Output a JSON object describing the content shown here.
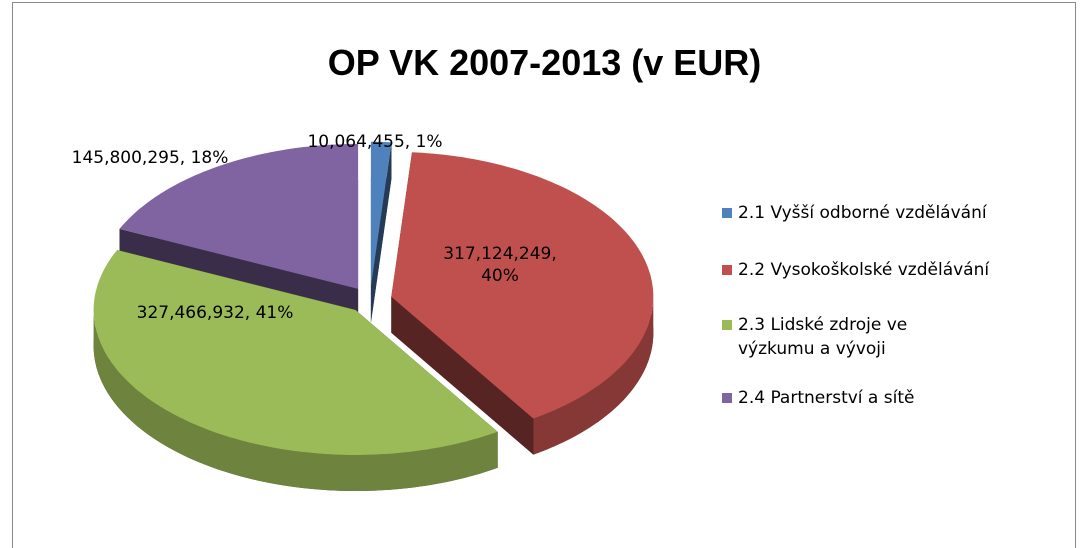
{
  "chart_data": {
    "type": "pie",
    "title": "OP VK 2007-2013 (v EUR)",
    "categories": [
      "2.1 Vyšší odborné vzdělávání",
      "2.2 Vysokoškolské vzdělávání",
      "2.3 Lidské zdroje ve výzkumu a vývoji",
      "2.4 Partnerství a sítě"
    ],
    "values": [
      10064455,
      317124249,
      327466932,
      145800295
    ],
    "value_labels": [
      "10,064,455, 1%",
      "317,124,249, 40%",
      "327,466,932, 41%",
      "145,800,295, 18%"
    ],
    "colors": [
      "#4f81bd",
      "#c0504d",
      "#9bbb59",
      "#8064a2"
    ],
    "legend": "right"
  }
}
